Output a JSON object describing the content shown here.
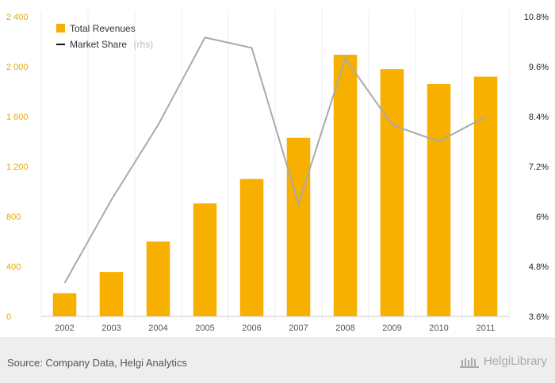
{
  "chart_data": {
    "type": "bar",
    "categories": [
      "2002",
      "2003",
      "2004",
      "2005",
      "2006",
      "2007",
      "2008",
      "2009",
      "2010",
      "2011"
    ],
    "series": [
      {
        "name": "Total Revenues",
        "type": "bar",
        "axis": "left",
        "color": "#f7b000",
        "values": [
          185,
          355,
          600,
          905,
          1100,
          1430,
          2095,
          1980,
          1860,
          1920
        ]
      },
      {
        "name": "Market Share",
        "type": "line",
        "axis": "right",
        "color": "#aaaaaa",
        "values": [
          4.4,
          6.4,
          8.2,
          10.3,
          10.05,
          6.3,
          9.8,
          8.2,
          7.8,
          8.4
        ]
      }
    ],
    "ylim": [
      0,
      2400
    ],
    "y_ticks": [
      "0",
      "400",
      "800",
      "1 200",
      "1 600",
      "2 000",
      "2 400"
    ],
    "y2lim": [
      3.6,
      10.8
    ],
    "y2_ticks": [
      "3.6%",
      "4.8%",
      "6%",
      "7.2%",
      "8.4%",
      "9.6%",
      "10.8%"
    ],
    "legend": {
      "position": "top-left",
      "entries": [
        {
          "label": "Total Revenues",
          "note": ""
        },
        {
          "label": "Market Share",
          "note": "(rhs)"
        }
      ]
    },
    "grid": "vertical",
    "axis_colors": {
      "left": "#e8a800",
      "right": "#222222"
    }
  },
  "footer": {
    "source": "Source: Company Data, Helgi Analytics",
    "brand": "HelgiLibrary"
  }
}
